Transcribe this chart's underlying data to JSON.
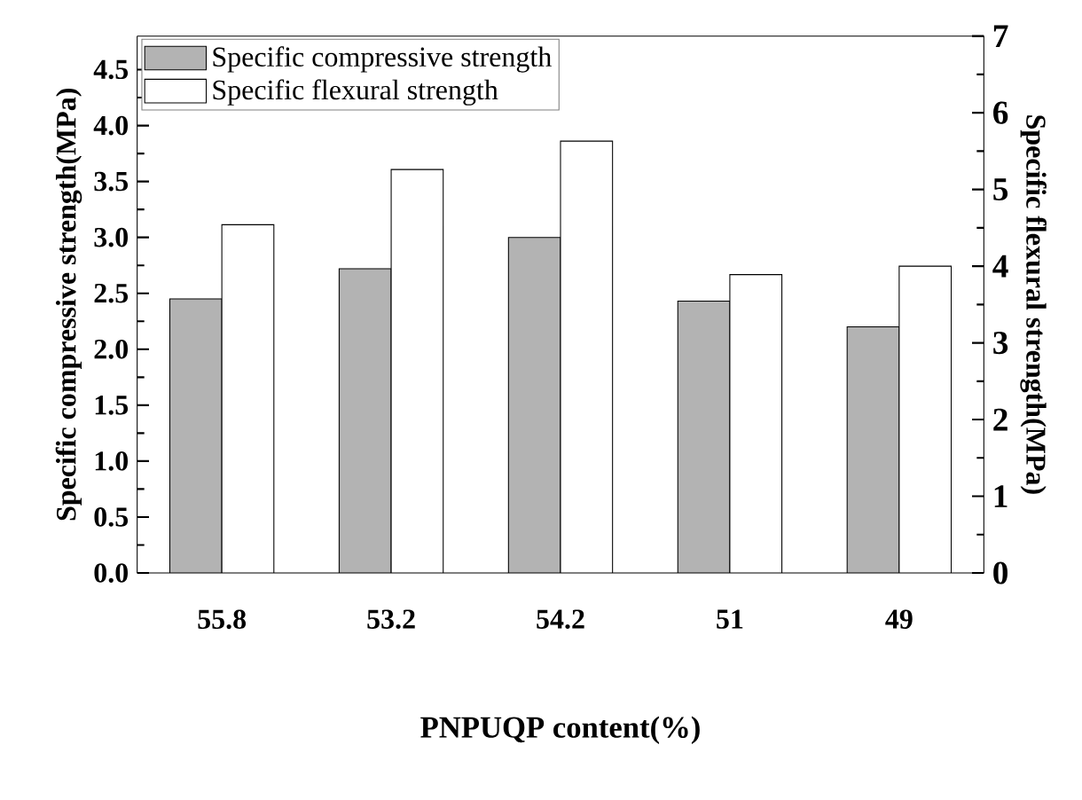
{
  "chart_data": {
    "type": "bar",
    "xlabel": "PNPUQP content(%)",
    "ylabel": "Specific compressive strength(MPa)",
    "y2label": "Specific flexural strength(MPa)",
    "categories": [
      "55.8",
      "53.2",
      "54.2",
      "51",
      "49"
    ],
    "series": [
      {
        "name": "Specific compressive strength",
        "color": "#b3b3b3",
        "values": [
          2.45,
          2.72,
          3.0,
          2.43,
          2.2
        ]
      },
      {
        "name": "Specific flexural strength",
        "color": "#000000",
        "axis": "y2",
        "values": [
          4.54,
          5.26,
          5.63,
          3.89,
          4.0
        ]
      }
    ],
    "ylim": [
      0,
      4.8
    ],
    "yticks": [
      {
        "value": 0,
        "label": "0.0"
      },
      0.5,
      {
        "value": 1,
        "label": "1.0"
      },
      1.5,
      {
        "value": 2,
        "label": "2.0"
      },
      2.5,
      {
        "value": 3,
        "label": "3.0"
      },
      3.5,
      {
        "value": 4,
        "label": "4.0"
      },
      4.5
    ],
    "y2lim": [
      0,
      7
    ],
    "y2ticks": [
      0,
      1,
      2,
      3,
      4,
      5,
      6,
      7
    ],
    "legend": "top left",
    "grid": false
  }
}
